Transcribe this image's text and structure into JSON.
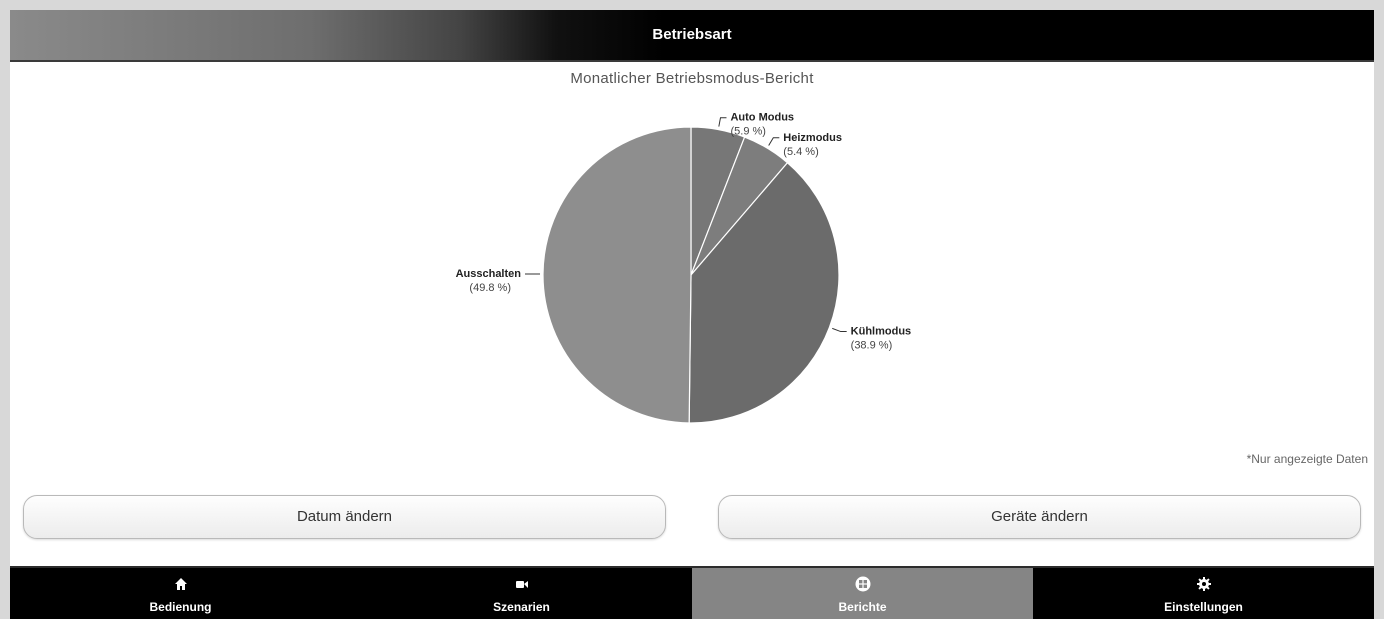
{
  "header": {
    "title": "Betriebsart"
  },
  "report": {
    "title": "Monatlicher Betriebsmodus-Bericht",
    "note": "*Nur angezeigte Daten"
  },
  "chart_data": {
    "type": "pie",
    "title": "Monatlicher Betriebsmodus-Bericht",
    "slices": [
      {
        "label": "Auto  Modus",
        "percent_label": "(5.9 %)",
        "value": 5.9,
        "color": "#777777"
      },
      {
        "label": "Heizmodus",
        "percent_label": "(5.4 %)",
        "value": 5.4,
        "color": "#7d7d7d"
      },
      {
        "label": "Kühlmodus",
        "percent_label": "(38.9 %)",
        "value": 38.9,
        "color": "#6b6b6b"
      },
      {
        "label": "Ausschalten",
        "percent_label": "(49.8 %)",
        "value": 49.8,
        "color": "#8e8e8e"
      }
    ],
    "legend": "none",
    "labels": "outside with leader lines"
  },
  "buttons": {
    "change_date": "Datum ändern",
    "change_devices": "Geräte ändern"
  },
  "tabs": [
    {
      "label": "Bedienung",
      "icon": "home-icon",
      "active": false
    },
    {
      "label": "Szenarien",
      "icon": "video-camera-icon",
      "active": false
    },
    {
      "label": "Berichte",
      "icon": "grid-icon",
      "active": true
    },
    {
      "label": "Einstellungen",
      "icon": "gear-icon",
      "active": false
    }
  ]
}
